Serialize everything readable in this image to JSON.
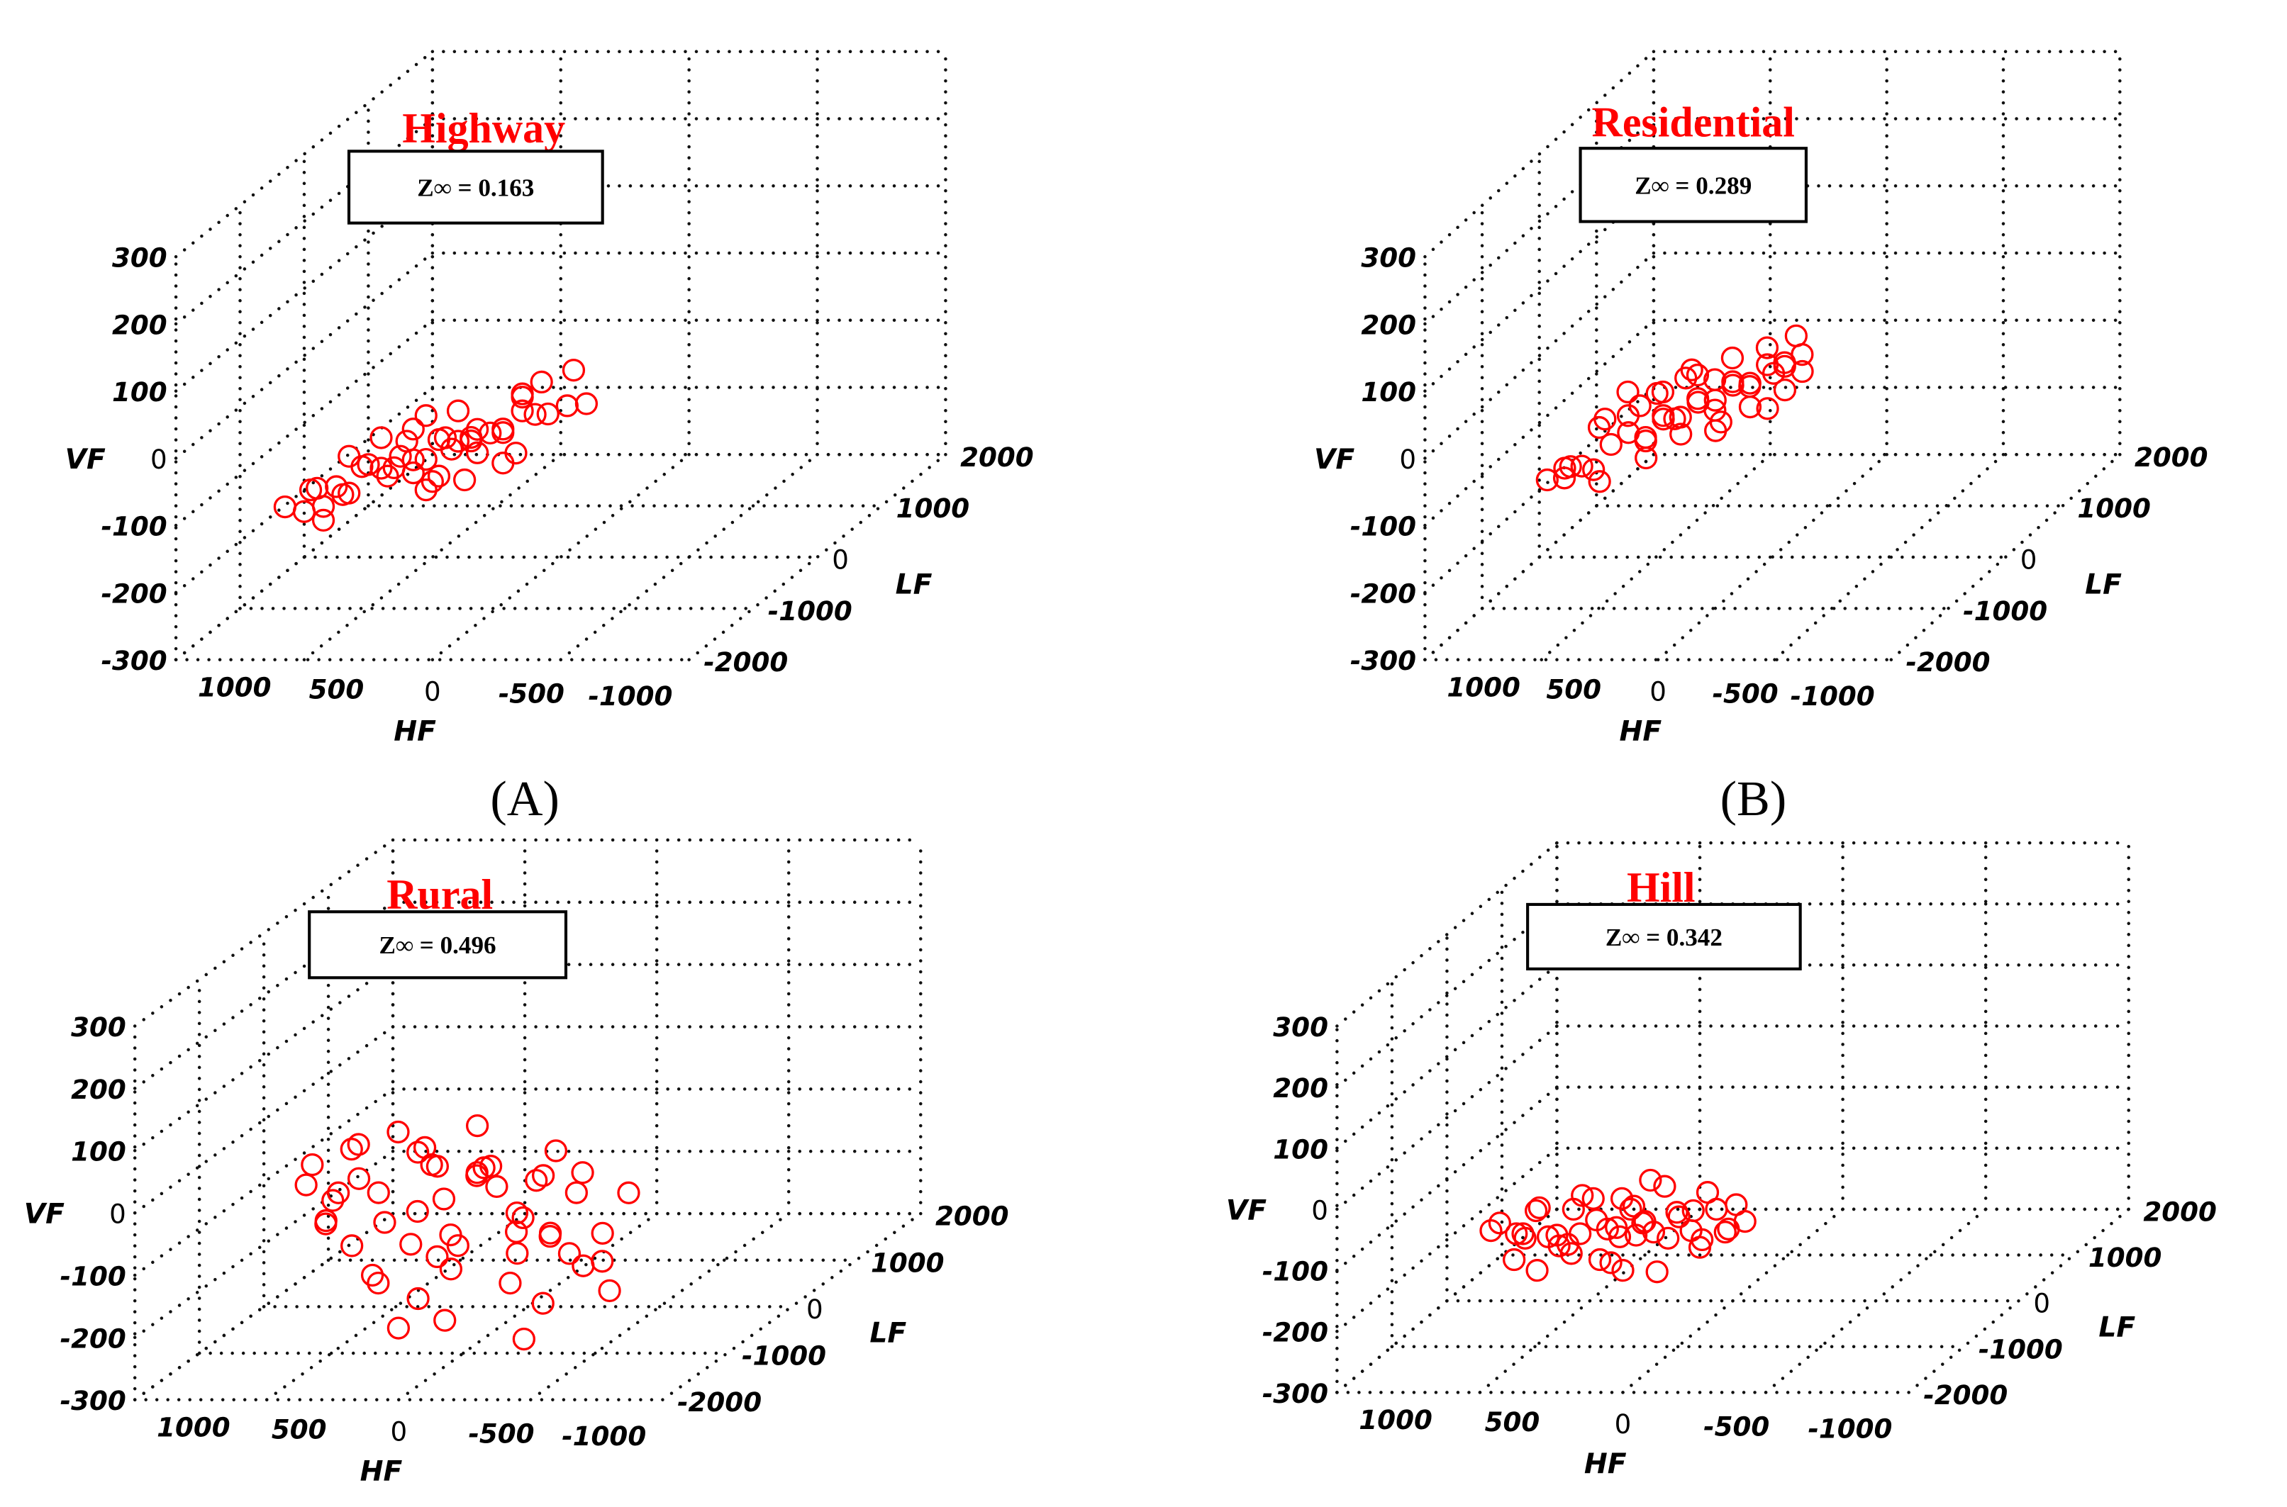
{
  "chart_data": [
    {
      "type": "scatter",
      "title": "Highway",
      "annotation": "Z∞ = 0.163",
      "panel_label": "(A)",
      "xlabel": "HF",
      "ylabel": "LF",
      "zlabel": "VF",
      "xlim": [
        -1000,
        1000
      ],
      "ylim": [
        -2000,
        2000
      ],
      "zlim": [
        -300,
        300
      ],
      "x_ticks": [
        "1000",
        "500",
        "0",
        "-500",
        "-1000"
      ],
      "y_ticks": [
        "-2000",
        "-1000",
        "0",
        "1000",
        "2000"
      ],
      "z_ticks": [
        "-300",
        "-200",
        "-100",
        "0",
        "100",
        "200",
        "300"
      ],
      "grid": true,
      "points": [
        [
          600,
          -1900,
          -80
        ],
        [
          550,
          -1700,
          -70
        ],
        [
          500,
          -1800,
          -60
        ],
        [
          450,
          -1500,
          -90
        ],
        [
          400,
          -1900,
          -50
        ],
        [
          350,
          -1600,
          -40
        ],
        [
          300,
          -1400,
          -60
        ],
        [
          250,
          -1800,
          -30
        ],
        [
          200,
          -1700,
          -20
        ],
        [
          150,
          -1500,
          -40
        ],
        [
          100,
          -1900,
          -10
        ],
        [
          50,
          -1600,
          0
        ],
        [
          0,
          -1400,
          -20
        ],
        [
          -50,
          -1800,
          10
        ],
        [
          -100,
          -1700,
          20
        ],
        [
          -150,
          -1500,
          0
        ],
        [
          -200,
          -1900,
          30
        ],
        [
          -250,
          -1600,
          40
        ],
        [
          -300,
          -1400,
          20
        ],
        [
          -350,
          -1800,
          50
        ],
        [
          -400,
          -1500,
          40
        ],
        [
          300,
          -1900,
          -20
        ],
        [
          200,
          -1500,
          -60
        ],
        [
          100,
          -1300,
          -40
        ],
        [
          0,
          -1900,
          20
        ],
        [
          -100,
          -1300,
          -10
        ],
        [
          -200,
          -1400,
          50
        ],
        [
          400,
          -1700,
          -20
        ],
        [
          150,
          -1800,
          10
        ],
        [
          -50,
          -1500,
          -30
        ],
        [
          250,
          -1300,
          -10
        ],
        [
          50,
          -1200,
          -30
        ],
        [
          -300,
          -1900,
          0
        ],
        [
          -150,
          -1200,
          30
        ],
        [
          350,
          -1300,
          -80
        ],
        [
          500,
          -1400,
          -100
        ],
        [
          450,
          -1900,
          -100
        ],
        [
          550,
          -1500,
          -110
        ],
        [
          -250,
          -1300,
          60
        ],
        [
          0,
          -1600,
          40
        ],
        [
          100,
          -1700,
          -70
        ],
        [
          200,
          -1300,
          10
        ],
        [
          -350,
          -1200,
          70
        ],
        [
          300,
          -1600,
          0
        ],
        [
          -100,
          -1900,
          -40
        ],
        [
          600,
          -1600,
          -110
        ],
        [
          -400,
          -1200,
          20
        ],
        [
          150,
          -1300,
          -80
        ],
        [
          -200,
          -1700,
          -30
        ],
        [
          50,
          -1800,
          -50
        ]
      ]
    },
    {
      "type": "scatter",
      "title": "Residential",
      "annotation": "Z∞ = 0.289",
      "panel_label": "(B)",
      "xlabel": "HF",
      "ylabel": "LF",
      "zlabel": "VF",
      "xlim": [
        -1000,
        1000
      ],
      "ylim": [
        -2000,
        2000
      ],
      "zlim": [
        -300,
        300
      ],
      "x_ticks": [
        "1000",
        "500",
        "0",
        "-500",
        "-1000"
      ],
      "y_ticks": [
        "-2000",
        "-1000",
        "0",
        "1000",
        "2000"
      ],
      "z_ticks": [
        "-300",
        "-200",
        "-100",
        "0",
        "100",
        "200",
        "300"
      ],
      "grid": true,
      "points": [
        [
          500,
          -1900,
          -40
        ],
        [
          450,
          -1800,
          -30
        ],
        [
          400,
          -1900,
          -20
        ],
        [
          350,
          -1700,
          -40
        ],
        [
          300,
          -1600,
          -10
        ],
        [
          250,
          -1500,
          0
        ],
        [
          200,
          -1400,
          -20
        ],
        [
          150,
          -1300,
          10
        ],
        [
          100,
          -1200,
          0
        ],
        [
          50,
          -1100,
          20
        ],
        [
          0,
          -1000,
          10
        ],
        [
          -50,
          -900,
          30
        ],
        [
          -100,
          -800,
          20
        ],
        [
          -150,
          -700,
          40
        ],
        [
          -200,
          -600,
          30
        ],
        [
          -250,
          -500,
          40
        ],
        [
          300,
          -1300,
          10
        ],
        [
          200,
          -1100,
          30
        ],
        [
          100,
          -900,
          40
        ],
        [
          0,
          -700,
          50
        ],
        [
          400,
          -1400,
          0
        ],
        [
          150,
          -1600,
          -30
        ],
        [
          50,
          -1400,
          -10
        ],
        [
          -50,
          -1200,
          -20
        ],
        [
          -150,
          -1000,
          0
        ],
        [
          -250,
          -800,
          10
        ],
        [
          250,
          -1000,
          20
        ],
        [
          150,
          -800,
          40
        ],
        [
          -100,
          -500,
          50
        ],
        [
          350,
          -1100,
          30
        ],
        [
          0,
          -1300,
          30
        ],
        [
          -200,
          -900,
          -10
        ],
        [
          100,
          -1500,
          20
        ],
        [
          200,
          -700,
          20
        ],
        [
          -50,
          -600,
          0
        ],
        [
          450,
          -1500,
          -50
        ],
        [
          500,
          -1600,
          -60
        ],
        [
          300,
          -1800,
          -50
        ],
        [
          -300,
          -700,
          30
        ],
        [
          -200,
          -400,
          60
        ],
        [
          50,
          -800,
          -20
        ],
        [
          250,
          -1200,
          -30
        ],
        [
          -100,
          -1100,
          40
        ],
        [
          150,
          -1100,
          -10
        ],
        [
          -150,
          -400,
          20
        ],
        [
          0,
          -900,
          -30
        ],
        [
          350,
          -1500,
          20
        ],
        [
          100,
          -600,
          10
        ],
        [
          -250,
          -1000,
          50
        ],
        [
          200,
          -1500,
          40
        ]
      ]
    },
    {
      "type": "scatter",
      "title": "Rural",
      "annotation": "Z∞ = 0.496",
      "xlabel": "HF",
      "ylabel": "LF",
      "zlabel": "VF",
      "xlim": [
        -1000,
        1000
      ],
      "ylim": [
        -2000,
        2000
      ],
      "zlim": [
        -300,
        300
      ],
      "x_ticks": [
        "1000",
        "500",
        "0",
        "-500",
        "-1000"
      ],
      "y_ticks": [
        "-2000",
        "-1000",
        "0",
        "1000",
        "2000"
      ],
      "z_ticks": [
        "-300",
        "-200",
        "-100",
        "0",
        "100",
        "200",
        "300"
      ],
      "grid": true,
      "points": [
        [
          450,
          -1500,
          40
        ],
        [
          400,
          -1800,
          30
        ],
        [
          350,
          -1300,
          50
        ],
        [
          300,
          -1900,
          -20
        ],
        [
          250,
          -1600,
          80
        ],
        [
          200,
          -1400,
          -60
        ],
        [
          150,
          -1700,
          10
        ],
        [
          100,
          -2000,
          -100
        ],
        [
          50,
          -1500,
          60
        ],
        [
          0,
          -1300,
          -30
        ],
        [
          -50,
          -1800,
          90
        ],
        [
          -100,
          -1600,
          -120
        ],
        [
          -150,
          -1400,
          20
        ],
        [
          -200,
          -1900,
          -60
        ],
        [
          -250,
          -1700,
          50
        ],
        [
          -300,
          -1500,
          -150
        ],
        [
          -350,
          -1300,
          0
        ],
        [
          -400,
          -1800,
          -80
        ],
        [
          -450,
          -1600,
          30
        ],
        [
          -500,
          -1400,
          -110
        ],
        [
          -550,
          -1900,
          -40
        ],
        [
          -600,
          -1700,
          10
        ],
        [
          -650,
          -1500,
          -70
        ],
        [
          -700,
          -1300,
          -20
        ],
        [
          -750,
          -1800,
          -140
        ],
        [
          300,
          -1500,
          -90
        ],
        [
          200,
          -1800,
          40
        ],
        [
          100,
          -1300,
          -50
        ],
        [
          0,
          -1700,
          -160
        ],
        [
          -100,
          -1900,
          70
        ],
        [
          -200,
          -1300,
          -10
        ],
        [
          -300,
          -1800,
          60
        ],
        [
          -400,
          -1400,
          -190
        ],
        [
          -500,
          -1700,
          -60
        ],
        [
          -600,
          -1300,
          -130
        ],
        [
          350,
          -1700,
          -40
        ],
        [
          250,
          -2000,
          20
        ],
        [
          150,
          -1200,
          -110
        ],
        [
          50,
          -1800,
          -200
        ],
        [
          -50,
          -1400,
          -80
        ],
        [
          -150,
          -1900,
          -180
        ],
        [
          -250,
          -1200,
          -90
        ],
        [
          -350,
          -1600,
          -30
        ],
        [
          -450,
          -1900,
          -210
        ],
        [
          -550,
          -1400,
          20
        ],
        [
          400,
          -1300,
          -20
        ],
        [
          100,
          -1600,
          100
        ],
        [
          -200,
          -1600,
          110
        ],
        [
          0,
          -1400,
          30
        ],
        [
          -100,
          -1200,
          0
        ],
        [
          -300,
          -1300,
          -60
        ],
        [
          200,
          -1500,
          -150
        ],
        [
          -650,
          -1800,
          -100
        ],
        [
          -400,
          -1200,
          40
        ],
        [
          50,
          -1200,
          -130
        ]
      ]
    },
    {
      "type": "scatter",
      "title": "Hill",
      "annotation": "Z∞ = 0.342",
      "xlabel": "HF",
      "ylabel": "LF",
      "zlabel": "VF",
      "xlim": [
        -1000,
        1000
      ],
      "ylim": [
        -2000,
        2000
      ],
      "zlim": [
        -300,
        300
      ],
      "x_ticks": [
        "1000",
        "500",
        "0",
        "-500",
        "-1000"
      ],
      "y_ticks": [
        "-2000",
        "-1000",
        "0",
        "1000",
        "2000"
      ],
      "z_ticks": [
        "-300",
        "-200",
        "-100",
        "0",
        "100",
        "200",
        "300"
      ],
      "grid": true,
      "points": [
        [
          500,
          -1800,
          -50
        ],
        [
          450,
          -1900,
          -30
        ],
        [
          400,
          -1700,
          -70
        ],
        [
          350,
          -2000,
          -40
        ],
        [
          300,
          -1800,
          -60
        ],
        [
          250,
          -1600,
          -30
        ],
        [
          200,
          -1900,
          -80
        ],
        [
          150,
          -1700,
          -40
        ],
        [
          100,
          -1500,
          -20
        ],
        [
          50,
          -1800,
          -60
        ],
        [
          0,
          -1600,
          -50
        ],
        [
          -50,
          -1900,
          -30
        ],
        [
          -100,
          -1700,
          -70
        ],
        [
          -150,
          -1500,
          -40
        ],
        [
          -200,
          -1800,
          -50
        ],
        [
          -250,
          -1600,
          -30
        ],
        [
          -300,
          -1700,
          -60
        ],
        [
          -350,
          -1900,
          -40
        ],
        [
          400,
          -1500,
          -40
        ],
        [
          300,
          -1600,
          -90
        ],
        [
          200,
          -1500,
          -20
        ],
        [
          100,
          -1900,
          -90
        ],
        [
          0,
          -1800,
          -10
        ],
        [
          -100,
          -1500,
          -50
        ],
        [
          -200,
          -1600,
          -80
        ],
        [
          350,
          -1700,
          -20
        ],
        [
          250,
          -1900,
          -50
        ],
        [
          150,
          -1500,
          -70
        ],
        [
          50,
          -1600,
          -30
        ],
        [
          -50,
          -1700,
          -60
        ],
        [
          -150,
          -1800,
          -20
        ],
        [
          -250,
          -1900,
          -70
        ],
        [
          450,
          -1600,
          -70
        ],
        [
          300,
          -2000,
          -100
        ],
        [
          100,
          -1700,
          -110
        ],
        [
          0,
          -2000,
          -100
        ],
        [
          -100,
          -1900,
          -110
        ],
        [
          200,
          -1700,
          0
        ],
        [
          0,
          -1500,
          10
        ],
        [
          -200,
          -1500,
          -10
        ],
        [
          150,
          -2000,
          -40
        ],
        [
          -300,
          -1500,
          -30
        ],
        [
          400,
          -1900,
          -90
        ],
        [
          50,
          -1500,
          -80
        ],
        [
          -50,
          -1500,
          0
        ],
        [
          250,
          -1700,
          -80
        ],
        [
          -350,
          -1600,
          -50
        ],
        [
          100,
          -1600,
          -60
        ]
      ]
    }
  ],
  "colors": {
    "marker": "#ff0000",
    "title": "#ff0000",
    "grid": "#111111"
  }
}
